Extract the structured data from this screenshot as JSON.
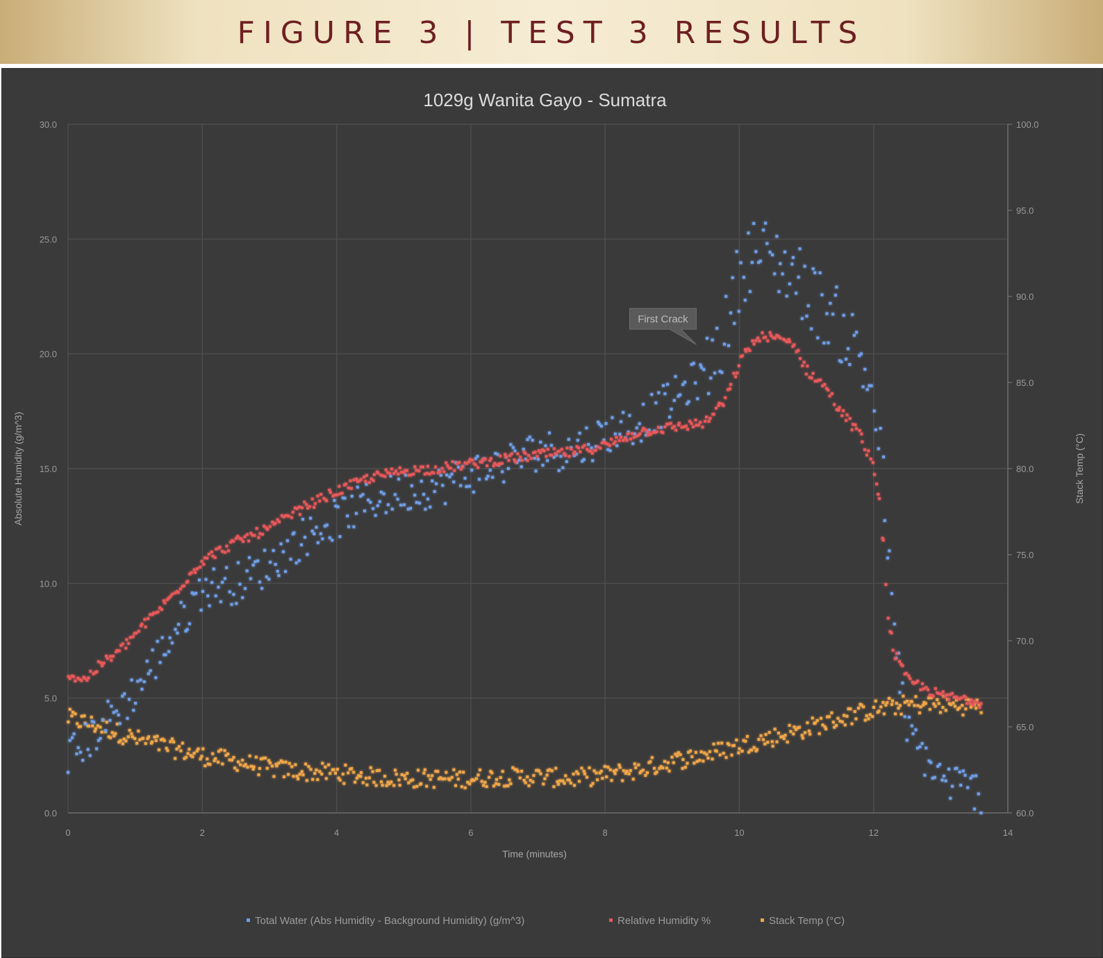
{
  "header": {
    "title": "FIGURE 3  |  TEST 3 RESULTS"
  },
  "colors": {
    "background": "#3a3a3a",
    "grid": "#4d4d4d",
    "total_water": "#6f9fe8",
    "relative_humidity": "#e8595a",
    "stack_temp": "#f0a64a"
  },
  "chart_data": {
    "type": "scatter",
    "title": "1029g Wanita Gayo - Sumatra",
    "xlabel": "Time (minutes)",
    "ylabel": "Absolute Humidity (g/m^3)",
    "y2label": "Stack Temp (°C)",
    "xlim": [
      0,
      14
    ],
    "ylim": [
      0,
      30
    ],
    "y2lim": [
      60,
      100
    ],
    "x_ticks": [
      "0",
      "2",
      "4",
      "6",
      "8",
      "10",
      "12",
      "14"
    ],
    "y_ticks": [
      "0.0",
      "5.0",
      "10.0",
      "15.0",
      "20.0",
      "25.0",
      "30.0"
    ],
    "y2_ticks": [
      "60.0",
      "65.0",
      "70.0",
      "75.0",
      "80.0",
      "85.0",
      "90.0",
      "95.0",
      "100.0"
    ],
    "grid": true,
    "legend_position": "bottom",
    "annotations": [
      {
        "text": "First Crack",
        "x": 9.4,
        "y": 19.8
      }
    ],
    "series": [
      {
        "name": "Total Water (Abs Humidity - Background Humidity) (g/m^3)",
        "axis": "left",
        "x": [
          0,
          0.25,
          0.5,
          0.75,
          1,
          1.5,
          2,
          2.5,
          3,
          3.5,
          4,
          4.5,
          5,
          5.5,
          6,
          6.5,
          7,
          7.5,
          8,
          8.5,
          9,
          9.5,
          9.8,
          10,
          10.2,
          10.5,
          10.8,
          11,
          11.3,
          11.5,
          11.8,
          12,
          12.1,
          12.2,
          12.3,
          12.5,
          13,
          13.5,
          13.6
        ],
        "y": [
          2.5,
          3.0,
          3.8,
          4.5,
          5.3,
          7.5,
          9.8,
          10.0,
          10.8,
          12.0,
          12.8,
          13.6,
          14.0,
          14.2,
          14.8,
          15.2,
          15.8,
          15.8,
          16.5,
          17.0,
          18.0,
          19.2,
          21.0,
          23.5,
          24.5,
          24.2,
          23.5,
          22.8,
          21.8,
          21.2,
          20.0,
          18.0,
          16.0,
          12.0,
          8.0,
          3.5,
          1.5,
          1.0,
          0.8
        ]
      },
      {
        "name": "Relative Humidity %",
        "axis": "left",
        "x": [
          0,
          0.25,
          0.5,
          0.75,
          1,
          1.5,
          2,
          2.5,
          3,
          3.5,
          4,
          4.5,
          5,
          5.5,
          6,
          6.5,
          7,
          7.5,
          8,
          8.5,
          9,
          9.5,
          9.8,
          10,
          10.2,
          10.4,
          10.6,
          10.8,
          11,
          11.3,
          11.5,
          11.8,
          12,
          12.1,
          12.15,
          12.2,
          12.3,
          12.5,
          13,
          13.5,
          13.6
        ],
        "y": [
          6.0,
          5.8,
          6.5,
          7.0,
          7.8,
          9.3,
          11.0,
          11.8,
          12.4,
          13.3,
          14.0,
          14.6,
          14.9,
          15.0,
          15.2,
          15.4,
          15.6,
          15.7,
          16.0,
          16.6,
          16.8,
          17.0,
          18.0,
          19.6,
          20.5,
          20.8,
          20.6,
          20.5,
          19.3,
          18.5,
          17.5,
          16.5,
          15.0,
          13.5,
          11.5,
          9.0,
          7.0,
          5.8,
          5.1,
          4.9,
          4.8
        ]
      },
      {
        "name": "Stack Temp (°C)",
        "axis": "right",
        "x": [
          0,
          0.5,
          1,
          1.5,
          2,
          2.5,
          3,
          3.5,
          4,
          4.5,
          5,
          5.5,
          6,
          6.5,
          7,
          7.5,
          8,
          8.5,
          9,
          9.5,
          10,
          10.5,
          11,
          11.5,
          12,
          12.5,
          13,
          13.5,
          13.6
        ],
        "y": [
          65.5,
          65.0,
          64.3,
          63.8,
          63.3,
          63.0,
          62.6,
          62.4,
          62.3,
          62.1,
          62.0,
          62.0,
          62.0,
          62.1,
          62.1,
          62.0,
          62.2,
          62.5,
          63.0,
          63.4,
          63.9,
          64.4,
          64.9,
          65.5,
          66.0,
          66.3,
          66.3,
          66.2,
          66.1
        ]
      }
    ]
  }
}
